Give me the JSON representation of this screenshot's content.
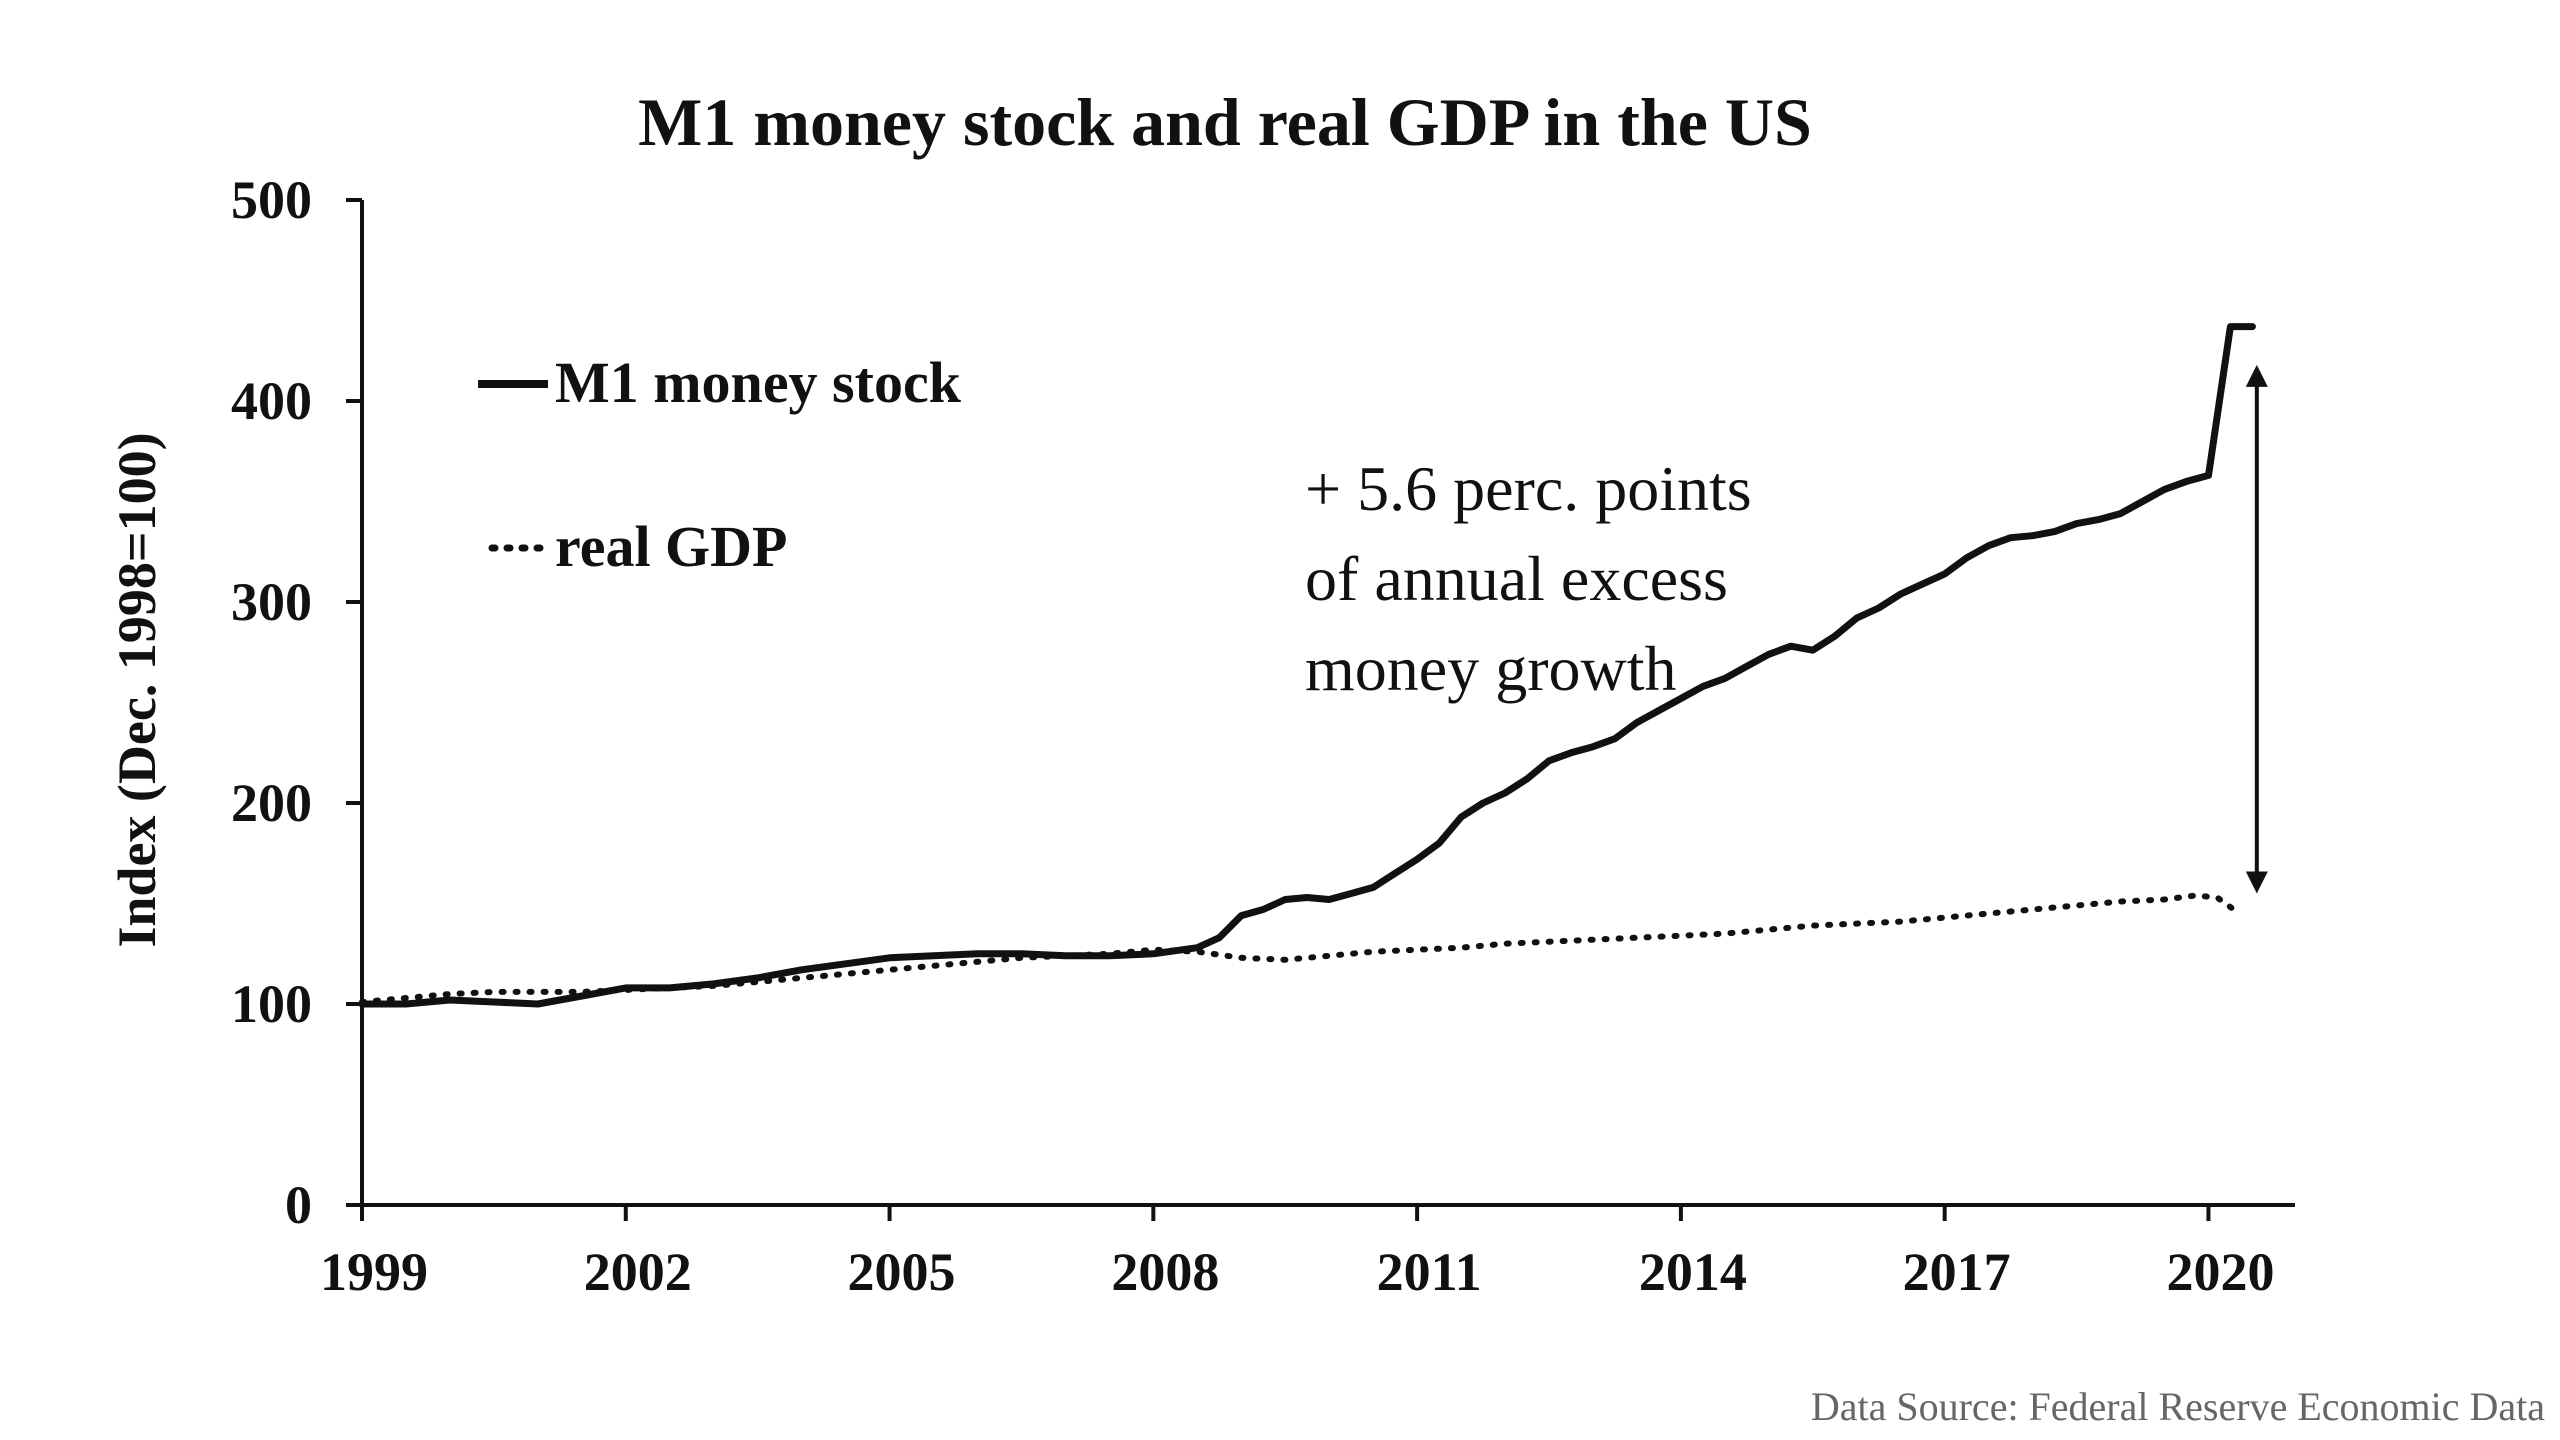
{
  "chart_data": {
    "type": "line",
    "title": "M1 money stock and real GDP in the US",
    "ylabel": "Index (Dec. 1998=100)",
    "xlabel": "",
    "xlim": [
      1999,
      2020.7
    ],
    "ylim": [
      0,
      500
    ],
    "x_ticks": [
      "1999",
      "2002",
      "2005",
      "2008",
      "2011",
      "2014",
      "2017",
      "2020"
    ],
    "y_ticks": [
      "0",
      "100",
      "200",
      "300",
      "400",
      "500"
    ],
    "grid": false,
    "legend_position": "top-left",
    "series": [
      {
        "name": "M1 money stock",
        "style": "solid",
        "x": [
          1999.0,
          1999.5,
          2000.0,
          2000.5,
          2001.0,
          2001.5,
          2002.0,
          2002.5,
          2003.0,
          2003.5,
          2004.0,
          2004.5,
          2005.0,
          2005.5,
          2006.0,
          2006.5,
          2007.0,
          2007.5,
          2008.0,
          2008.5,
          2008.75,
          2009.0,
          2009.25,
          2009.5,
          2009.75,
          2010.0,
          2010.25,
          2010.5,
          2010.75,
          2011.0,
          2011.25,
          2011.5,
          2011.75,
          2012.0,
          2012.25,
          2012.5,
          2012.75,
          2013.0,
          2013.25,
          2013.5,
          2013.75,
          2014.0,
          2014.25,
          2014.5,
          2014.75,
          2015.0,
          2015.25,
          2015.5,
          2015.75,
          2016.0,
          2016.25,
          2016.5,
          2016.75,
          2017.0,
          2017.25,
          2017.5,
          2017.75,
          2018.0,
          2018.25,
          2018.5,
          2018.75,
          2019.0,
          2019.25,
          2019.5,
          2019.75,
          2020.0,
          2020.25,
          2020.5
        ],
        "values": [
          100,
          100,
          102,
          101,
          100,
          104,
          108,
          108,
          110,
          113,
          117,
          120,
          123,
          124,
          125,
          125,
          124,
          124,
          125,
          128,
          133,
          144,
          147,
          152,
          153,
          152,
          155,
          158,
          165,
          172,
          180,
          193,
          200,
          205,
          212,
          221,
          225,
          228,
          232,
          240,
          246,
          252,
          258,
          262,
          268,
          274,
          278,
          276,
          283,
          292,
          297,
          304,
          309,
          314,
          322,
          328,
          332,
          333,
          335,
          339,
          341,
          344,
          350,
          356,
          360,
          363,
          437,
          437
        ]
      },
      {
        "name": "real GDP",
        "style": "dotted",
        "x": [
          1999.0,
          1999.5,
          2000.0,
          2000.5,
          2001.0,
          2001.5,
          2002.0,
          2002.5,
          2003.0,
          2003.5,
          2004.0,
          2004.5,
          2005.0,
          2005.5,
          2006.0,
          2006.5,
          2007.0,
          2007.5,
          2008.0,
          2008.5,
          2009.0,
          2009.5,
          2010.0,
          2010.5,
          2011.0,
          2011.5,
          2012.0,
          2012.5,
          2013.0,
          2013.5,
          2014.0,
          2014.5,
          2015.0,
          2015.5,
          2016.0,
          2016.5,
          2017.0,
          2017.5,
          2018.0,
          2018.5,
          2019.0,
          2019.5,
          2019.85,
          2020.1,
          2020.35
        ],
        "values": [
          101,
          103,
          105,
          106,
          106,
          106,
          107,
          108,
          109,
          111,
          113,
          115,
          117,
          119,
          121,
          123,
          124,
          125,
          127,
          126,
          123,
          122,
          124,
          126,
          127,
          128,
          130,
          131,
          132,
          133,
          134,
          135,
          137,
          139,
          140,
          141,
          143,
          145,
          147,
          149,
          151,
          152,
          154,
          153,
          145
        ]
      }
    ],
    "annotations": [
      {
        "text_lines": [
          "+ 5.6 perc. points",
          "of  annual excess",
          "money growth"
        ]
      }
    ],
    "double_arrow": {
      "x": 2020.55,
      "y_from": 155,
      "y_to": 418
    },
    "source_note": "Data Source: Federal Reserve Economic Data"
  }
}
